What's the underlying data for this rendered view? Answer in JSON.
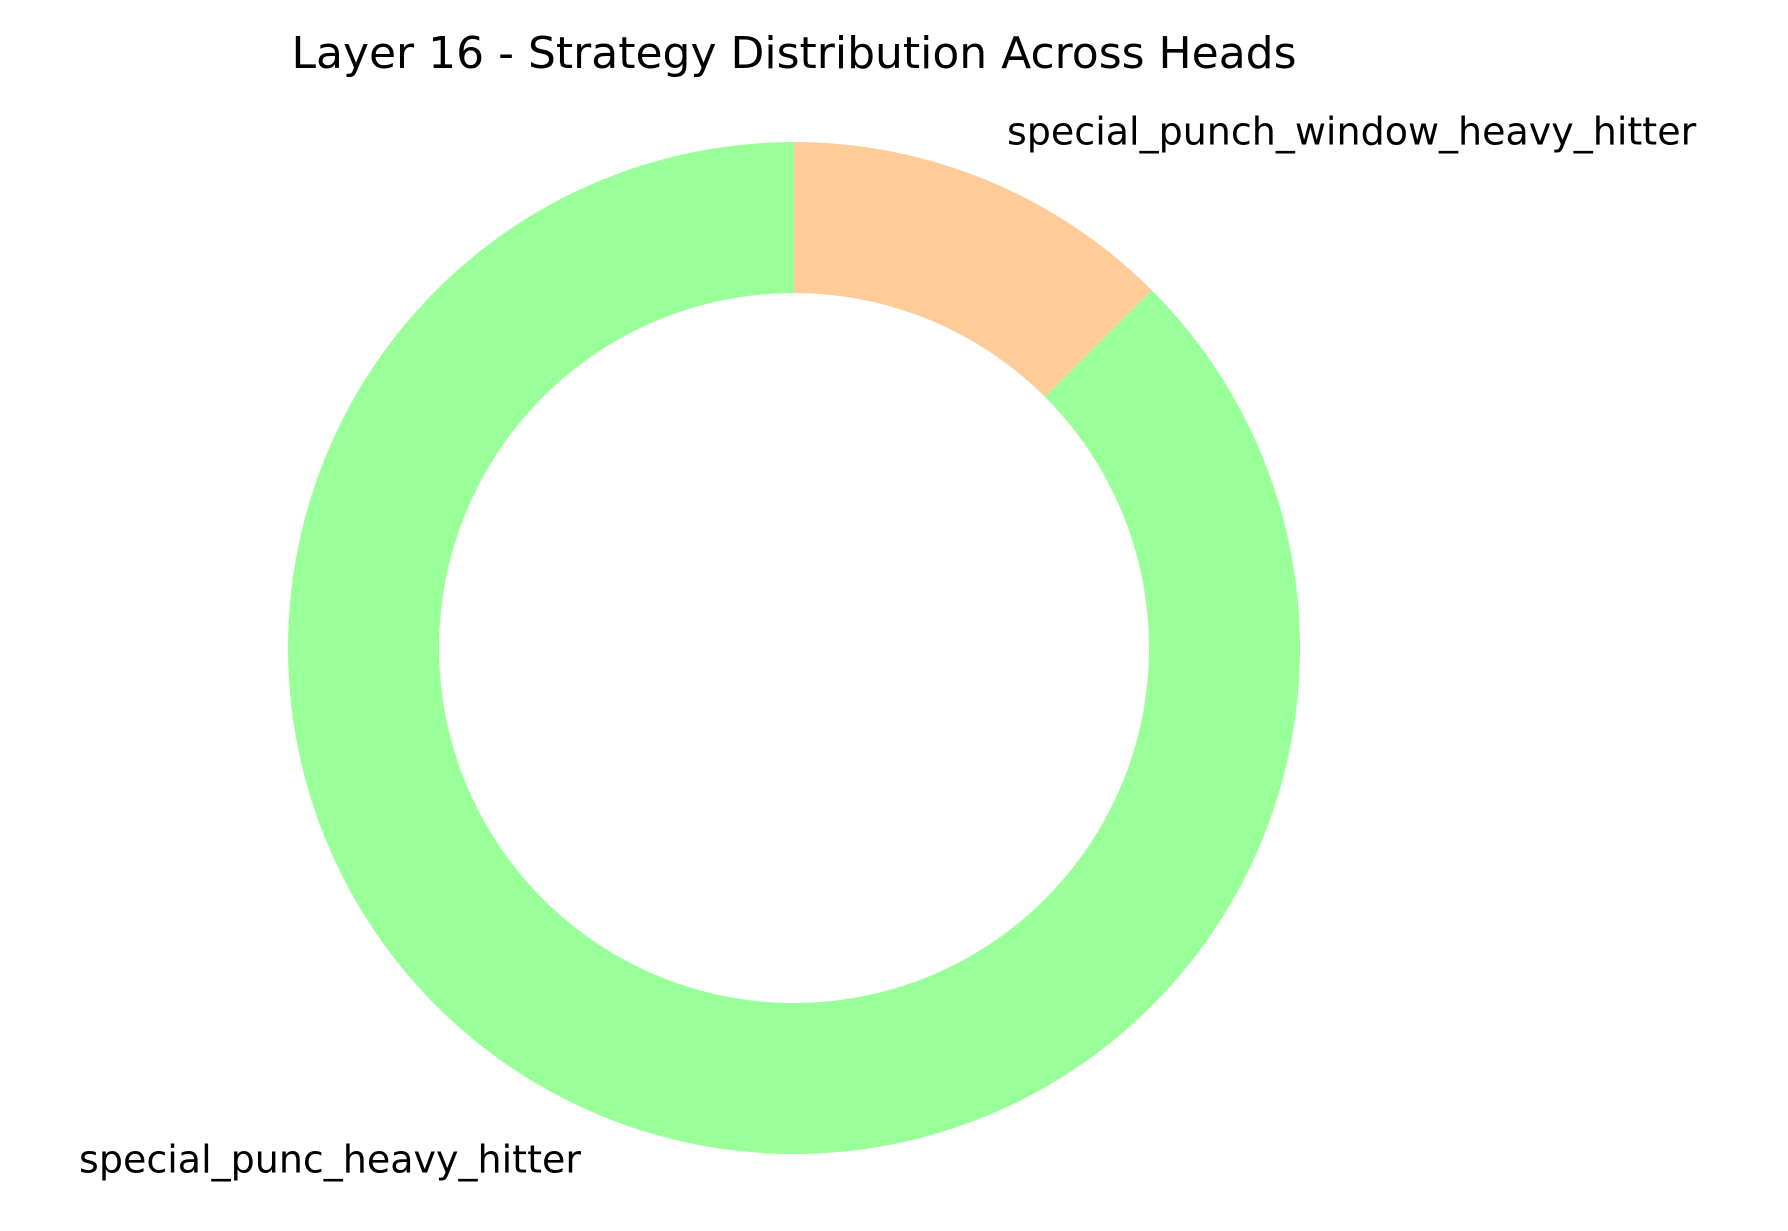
{
  "chart_data": {
    "type": "pie",
    "donut": true,
    "title": "Layer 16 - Strategy Distribution Across Heads",
    "slices": [
      {
        "label": "special_punch_window_heavy_hitter",
        "value": 1,
        "color": "#ffcc99"
      },
      {
        "label": "special_punc_heavy_hitter",
        "value": 7,
        "color": "#99ff99"
      }
    ],
    "start_angle": 90,
    "direction": "clockwise",
    "legend": "none"
  }
}
